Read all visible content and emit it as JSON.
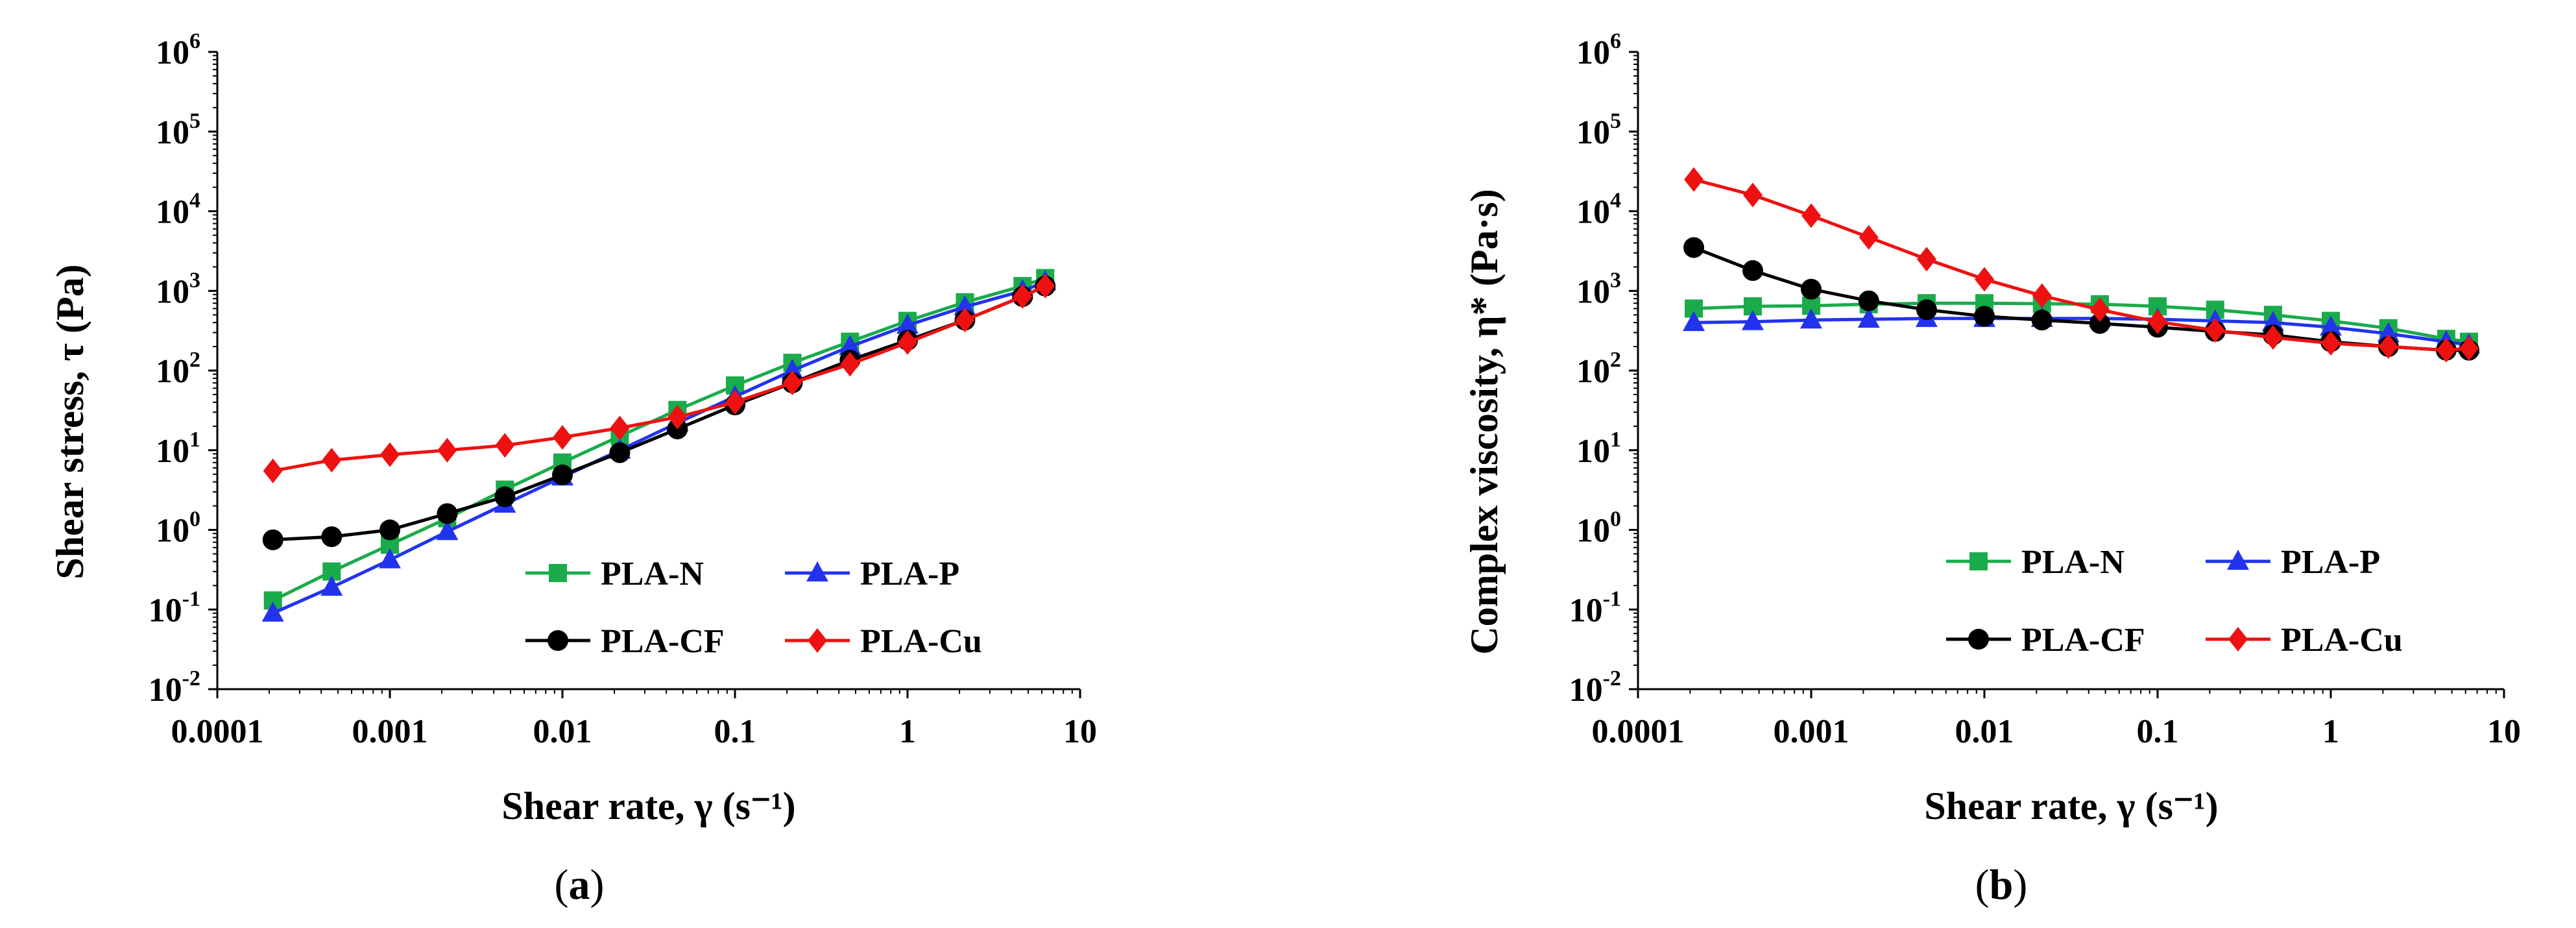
{
  "chart_data": [
    {
      "type": "line",
      "panel_label": "a",
      "xscale": "log",
      "yscale": "log",
      "xlabel": "Shear rate, γ (s⁻¹)",
      "ylabel": "Shear stress, τ (Pa)",
      "xlim": [
        0.0001,
        10
      ],
      "ylim": [
        0.01,
        1000000
      ],
      "x_tick_labels": [
        "0.0001",
        "0.001",
        "0.01",
        "0.1",
        "1",
        "10"
      ],
      "y_tick_exponents": [
        "-2",
        "-1",
        "0",
        "1",
        "2",
        "3",
        "4",
        "5",
        "6"
      ],
      "x": [
        0.00021,
        0.00046,
        0.001,
        0.00215,
        0.00464,
        0.01,
        0.0215,
        0.0464,
        0.1,
        0.215,
        0.464,
        1,
        2.15,
        4.64,
        6.28
      ],
      "legend": "bottom-right",
      "series": [
        {
          "name": "PLA-N",
          "color": "#1aab4b",
          "marker": "square",
          "values": [
            0.13,
            0.3,
            0.65,
            1.4,
            3.2,
            7,
            15,
            32,
            65,
            125,
            230,
            420,
            720,
            1150,
            1450
          ]
        },
        {
          "name": "PLA-P",
          "color": "#2233ee",
          "marker": "triangle",
          "values": [
            0.09,
            0.19,
            0.42,
            0.95,
            2.1,
            4.6,
            10,
            22,
            47,
            100,
            200,
            370,
            630,
            1000,
            1300
          ]
        },
        {
          "name": "PLA-CF",
          "color": "#000000",
          "marker": "circle",
          "values": [
            0.75,
            0.82,
            1.0,
            1.6,
            2.6,
            4.9,
            9.3,
            18.5,
            37,
            70,
            135,
            240,
            430,
            850,
            1150
          ]
        },
        {
          "name": "PLA-Cu",
          "color": "#ee1111",
          "marker": "diamond",
          "values": [
            5.5,
            7.5,
            8.8,
            10,
            11.5,
            14.5,
            19,
            26,
            40,
            70,
            120,
            225,
            430,
            850,
            1150
          ]
        }
      ]
    },
    {
      "type": "line",
      "panel_label": "b",
      "xscale": "log",
      "yscale": "log",
      "xlabel": "Shear rate, γ (s⁻¹)",
      "ylabel": "Complex viscosity, η* (Pa·s)",
      "xlim": [
        0.0001,
        10
      ],
      "ylim": [
        0.01,
        1000000
      ],
      "x_tick_labels": [
        "0.0001",
        "0.001",
        "0.01",
        "0.1",
        "1",
        "10"
      ],
      "y_tick_exponents": [
        "-2",
        "-1",
        "0",
        "1",
        "2",
        "3",
        "4",
        "5",
        "6"
      ],
      "x": [
        0.00021,
        0.00046,
        0.001,
        0.00215,
        0.00464,
        0.01,
        0.0215,
        0.0464,
        0.1,
        0.215,
        0.464,
        1,
        2.15,
        4.64,
        6.28
      ],
      "legend": "bottom-right",
      "series": [
        {
          "name": "PLA-N",
          "color": "#1aab4b",
          "marker": "square",
          "values": [
            600,
            640,
            650,
            680,
            700,
            700,
            690,
            680,
            640,
            580,
            500,
            420,
            340,
            250,
            230
          ]
        },
        {
          "name": "PLA-P",
          "color": "#2233ee",
          "marker": "triangle",
          "values": [
            400,
            410,
            430,
            440,
            450,
            450,
            450,
            450,
            440,
            420,
            400,
            350,
            290,
            230,
            210
          ]
        },
        {
          "name": "PLA-CF",
          "color": "#000000",
          "marker": "circle",
          "values": [
            3500,
            1800,
            1050,
            750,
            580,
            480,
            430,
            390,
            350,
            310,
            280,
            230,
            200,
            180,
            180
          ]
        },
        {
          "name": "PLA-Cu",
          "color": "#ee1111",
          "marker": "diamond",
          "values": [
            25000,
            16000,
            8800,
            4700,
            2500,
            1400,
            870,
            580,
            410,
            320,
            260,
            220,
            200,
            180,
            190
          ]
        }
      ]
    }
  ]
}
